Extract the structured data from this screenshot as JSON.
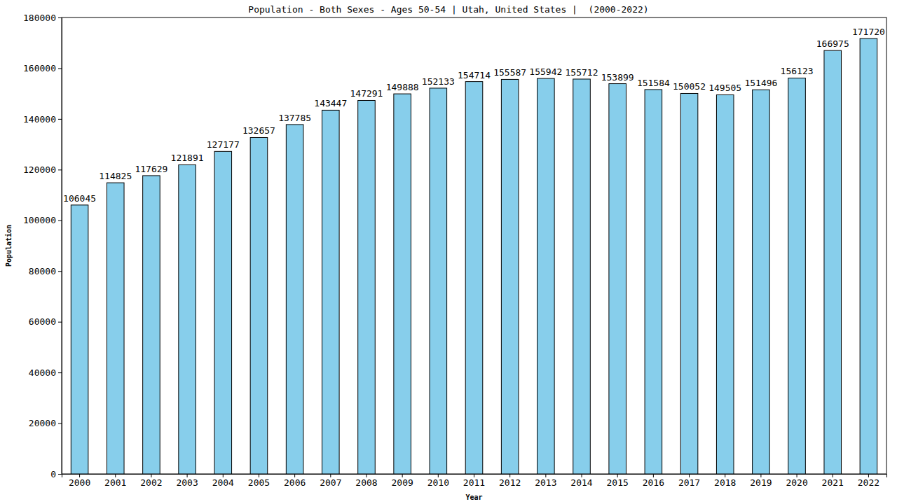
{
  "chart_data": {
    "type": "bar",
    "title": "Population - Both Sexes - Ages 50-54 | Utah, United States |  (2000-2022)",
    "x_label": "Year",
    "y_label": "Population",
    "categories": [
      "2000",
      "2001",
      "2002",
      "2003",
      "2004",
      "2005",
      "2006",
      "2007",
      "2008",
      "2009",
      "2010",
      "2011",
      "2012",
      "2013",
      "2014",
      "2015",
      "2016",
      "2017",
      "2018",
      "2019",
      "2020",
      "2021",
      "2022"
    ],
    "values": [
      106045,
      114825,
      117629,
      121891,
      127177,
      132657,
      137785,
      143447,
      147291,
      149888,
      152133,
      154714,
      155587,
      155942,
      155712,
      153899,
      151584,
      150052,
      149505,
      151496,
      156123,
      166975,
      171720
    ],
    "color": "#87ceeb",
    "ylim": [
      0,
      180000
    ],
    "yticks": [
      0,
      20000,
      40000,
      60000,
      80000,
      100000,
      120000,
      140000,
      160000,
      180000
    ],
    "grid": false,
    "data_labels": true
  }
}
